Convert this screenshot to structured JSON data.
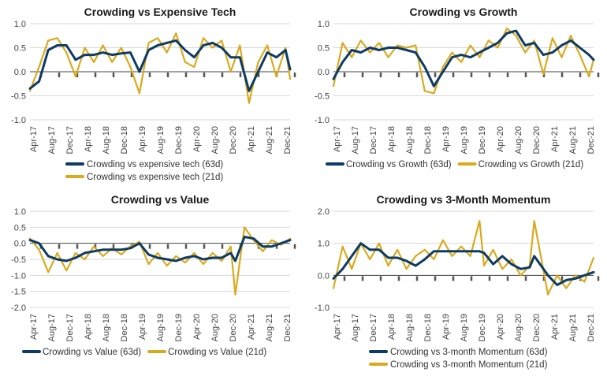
{
  "colors": {
    "crowding_63d": "#0d3b66",
    "crowding_21d": "#d9aa1e"
  },
  "chart_data": [
    {
      "type": "line",
      "title": "Crowding vs Expensive Tech",
      "ylim": [
        -1.0,
        1.0
      ],
      "yticks": [
        "1.0",
        "0.5",
        "0.0",
        "-0.5",
        "-1.0"
      ],
      "xticks": [
        "Apr-17",
        "Aug-17",
        "Dec-17",
        "Apr-18",
        "Aug-18",
        "Dec-18",
        "Apr-19",
        "Aug-19",
        "Dec-19",
        "Apr-20",
        "Aug-20",
        "Dec-20",
        "Apr-21",
        "Aug-21",
        "Dec-21"
      ],
      "grid": true,
      "legend_layout": "stacked",
      "x": [
        "2017-04",
        "2017-06",
        "2017-08",
        "2017-10",
        "2017-12",
        "2018-02",
        "2018-04",
        "2018-06",
        "2018-08",
        "2018-10",
        "2018-12",
        "2019-02",
        "2019-04",
        "2019-06",
        "2019-08",
        "2019-10",
        "2019-12",
        "2020-02",
        "2020-04",
        "2020-06",
        "2020-08",
        "2020-10",
        "2020-12",
        "2021-02",
        "2021-04",
        "2021-06",
        "2021-08",
        "2021-10",
        "2021-12",
        "2022-01"
      ],
      "series": [
        {
          "name": "Crowding vs expensive tech (63d)",
          "color": "#0d3b66",
          "values": [
            -0.35,
            -0.2,
            0.45,
            0.55,
            0.55,
            0.25,
            0.35,
            0.35,
            0.4,
            0.35,
            0.38,
            0.4,
            0.0,
            0.45,
            0.55,
            0.6,
            0.65,
            0.45,
            0.3,
            0.55,
            0.6,
            0.5,
            0.3,
            0.3,
            -0.4,
            0.0,
            0.4,
            0.3,
            0.45,
            0.05
          ]
        },
        {
          "name": "Crowding vs expensive tech (21d)",
          "color": "#d9aa1e",
          "values": [
            -0.4,
            0.1,
            0.65,
            0.7,
            0.4,
            -0.1,
            0.5,
            0.2,
            0.55,
            0.2,
            0.5,
            0.1,
            -0.45,
            0.6,
            0.7,
            0.4,
            0.8,
            0.2,
            0.1,
            0.7,
            0.5,
            0.65,
            0.0,
            0.55,
            -0.65,
            0.2,
            0.55,
            -0.1,
            0.5,
            -0.15
          ]
        }
      ]
    },
    {
      "type": "line",
      "title": "Crowding vs Growth",
      "ylim": [
        -1.0,
        1.0
      ],
      "yticks": [
        "1.0",
        "0.5",
        "0.0",
        "-0.5",
        "-1.0"
      ],
      "xticks": [
        "Apr-17",
        "Aug-17",
        "Dec-17",
        "Apr-18",
        "Aug-18",
        "Dec-18",
        "Apr-19",
        "Aug-19",
        "Dec-19",
        "Apr-20",
        "Aug-20",
        "Dec-20",
        "Apr-21",
        "Aug-21",
        "Dec-21"
      ],
      "grid": true,
      "legend_layout": "inline",
      "x": [
        "2017-04",
        "2017-06",
        "2017-08",
        "2017-10",
        "2017-12",
        "2018-02",
        "2018-04",
        "2018-06",
        "2018-08",
        "2018-10",
        "2018-12",
        "2019-02",
        "2019-04",
        "2019-06",
        "2019-08",
        "2019-10",
        "2019-12",
        "2020-02",
        "2020-04",
        "2020-06",
        "2020-08",
        "2020-10",
        "2020-12",
        "2021-02",
        "2021-04",
        "2021-06",
        "2021-08",
        "2021-10",
        "2021-12",
        "2022-01"
      ],
      "series": [
        {
          "name": "Crowding vs Growth (63d)",
          "color": "#0d3b66",
          "values": [
            -0.15,
            0.2,
            0.45,
            0.4,
            0.5,
            0.45,
            0.5,
            0.5,
            0.45,
            0.4,
            0.1,
            -0.3,
            0.0,
            0.3,
            0.35,
            0.3,
            0.4,
            0.5,
            0.6,
            0.8,
            0.85,
            0.55,
            0.6,
            0.35,
            0.4,
            0.55,
            0.65,
            0.5,
            0.35,
            0.25
          ]
        },
        {
          "name": "Crowding vs Growth (21d)",
          "color": "#d9aa1e",
          "values": [
            -0.3,
            0.6,
            0.3,
            0.65,
            0.4,
            0.6,
            0.3,
            0.55,
            0.5,
            0.55,
            -0.4,
            -0.45,
            0.1,
            0.4,
            0.2,
            0.55,
            0.3,
            0.65,
            0.5,
            0.9,
            0.75,
            0.4,
            0.65,
            -0.05,
            0.7,
            0.3,
            0.75,
            0.35,
            -0.1,
            0.25
          ]
        }
      ]
    },
    {
      "type": "line",
      "title": "Crowding vs Value",
      "ylim": [
        -2.0,
        1.0
      ],
      "yticks": [
        "1.0",
        "0.5",
        "0.0",
        "-0.5",
        "-1.0",
        "-1.5",
        "-2.0"
      ],
      "xticks": [
        "Apr-17",
        "Aug-17",
        "Dec-17",
        "Apr-18",
        "Aug-18",
        "Dec-18",
        "Apr-19",
        "Aug-19",
        "Dec-19",
        "Apr-20",
        "Aug-20",
        "Dec-20",
        "Apr-21",
        "Aug-21",
        "Dec-21"
      ],
      "grid": true,
      "legend_layout": "inline",
      "x": [
        "2017-04",
        "2017-06",
        "2017-08",
        "2017-10",
        "2017-12",
        "2018-02",
        "2018-04",
        "2018-06",
        "2018-08",
        "2018-10",
        "2018-12",
        "2019-02",
        "2019-04",
        "2019-06",
        "2019-08",
        "2019-10",
        "2019-12",
        "2020-02",
        "2020-04",
        "2020-06",
        "2020-08",
        "2020-10",
        "2020-12",
        "2021-01",
        "2021-03",
        "2021-05",
        "2021-07",
        "2021-09",
        "2021-11",
        "2022-01"
      ],
      "series": [
        {
          "name": "Crowding vs Value (63d)",
          "color": "#0d3b66",
          "values": [
            0.1,
            0.0,
            -0.4,
            -0.5,
            -0.55,
            -0.45,
            -0.3,
            -0.25,
            -0.2,
            -0.2,
            -0.2,
            -0.15,
            0.0,
            -0.35,
            -0.45,
            -0.5,
            -0.55,
            -0.45,
            -0.4,
            -0.5,
            -0.45,
            -0.45,
            -0.3,
            -0.55,
            0.2,
            0.15,
            -0.1,
            -0.1,
            0.0,
            0.1
          ]
        },
        {
          "name": "Crowding vs Value (21d)",
          "color": "#d9aa1e",
          "values": [
            0.15,
            -0.2,
            -0.9,
            -0.3,
            -0.85,
            -0.3,
            -0.5,
            -0.1,
            -0.4,
            -0.15,
            -0.35,
            -0.1,
            0.05,
            -0.65,
            -0.3,
            -0.7,
            -0.4,
            -0.6,
            -0.3,
            -0.65,
            -0.3,
            -0.55,
            -0.1,
            -1.6,
            0.5,
            0.1,
            -0.25,
            0.1,
            -0.05,
            0.15
          ]
        }
      ]
    },
    {
      "type": "line",
      "title": "Crowding vs 3-Month Momentum",
      "ylim": [
        -1.0,
        2.0
      ],
      "yticks": [
        "2.0",
        "1.0",
        "0.0",
        "-1.0"
      ],
      "xticks": [
        "Apr-17",
        "Aug-17",
        "Dec-17",
        "Apr-18",
        "Aug-18",
        "Dec-18",
        "Apr-19",
        "Aug-19",
        "Dec-19",
        "Apr-20",
        "Aug-20",
        "Dec-20",
        "Apr-21",
        "Aug-21",
        "Dec-21"
      ],
      "grid": true,
      "legend_layout": "stacked",
      "x": [
        "2017-04",
        "2017-06",
        "2017-08",
        "2017-10",
        "2017-12",
        "2018-02",
        "2018-04",
        "2018-06",
        "2018-08",
        "2018-10",
        "2018-12",
        "2019-02",
        "2019-04",
        "2019-06",
        "2019-08",
        "2019-10",
        "2019-12",
        "2020-01",
        "2020-03",
        "2020-05",
        "2020-07",
        "2020-09",
        "2020-11",
        "2020-12",
        "2021-03",
        "2021-05",
        "2021-07",
        "2021-09",
        "2021-11",
        "2022-01"
      ],
      "series": [
        {
          "name": "Crowding vs 3-month Momentum (63d)",
          "color": "#0d3b66",
          "values": [
            -0.1,
            0.2,
            0.6,
            1.0,
            0.8,
            0.8,
            0.55,
            0.55,
            0.45,
            0.3,
            0.5,
            0.75,
            0.75,
            0.75,
            0.75,
            0.75,
            0.75,
            0.7,
            0.35,
            0.6,
            0.35,
            0.2,
            0.25,
            0.6,
            0.0,
            -0.3,
            -0.15,
            -0.1,
            0.0,
            0.1
          ]
        },
        {
          "name": "Crowding vs 3-month Momentum (21d)",
          "color": "#d9aa1e",
          "values": [
            -0.4,
            0.9,
            0.2,
            1.0,
            0.5,
            1.0,
            0.3,
            0.8,
            0.2,
            0.6,
            0.8,
            0.5,
            1.1,
            0.6,
            0.9,
            0.6,
            1.7,
            0.3,
            0.8,
            0.2,
            0.5,
            0.0,
            0.3,
            1.7,
            -0.6,
            0.0,
            -0.4,
            0.0,
            -0.2,
            0.55
          ]
        }
      ]
    }
  ]
}
